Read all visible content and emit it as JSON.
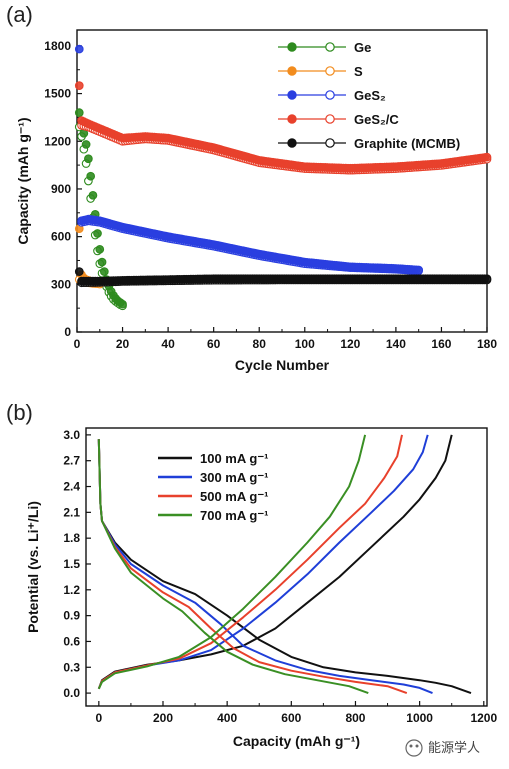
{
  "panel_a_label": "(a)",
  "panel_b_label": "(b)",
  "watermark": "能源学人",
  "chart_data": [
    {
      "type": "scatter",
      "xlabel": "Cycle Number",
      "ylabel": "Capacity (mAh g⁻¹)",
      "xlim": [
        0,
        180
      ],
      "ylim": [
        0,
        1900
      ],
      "xticks": [
        0,
        20,
        40,
        60,
        80,
        100,
        120,
        140,
        160,
        180
      ],
      "yticks": [
        0,
        300,
        600,
        900,
        1200,
        1500,
        1800
      ],
      "legend_position": "top-right",
      "series": [
        {
          "name": "Ge",
          "color": "#2e8b1e",
          "discharge": [
            [
              1,
              1380
            ],
            [
              2,
              1310
            ],
            [
              3,
              1250
            ],
            [
              4,
              1180
            ],
            [
              5,
              1090
            ],
            [
              6,
              980
            ],
            [
              7,
              860
            ],
            [
              8,
              740
            ],
            [
              9,
              620
            ],
            [
              10,
              520
            ],
            [
              11,
              440
            ],
            [
              12,
              380
            ],
            [
              13,
              330
            ],
            [
              14,
              290
            ],
            [
              15,
              255
            ],
            [
              16,
              230
            ],
            [
              17,
              210
            ],
            [
              18,
              195
            ],
            [
              19,
              185
            ],
            [
              20,
              175
            ]
          ],
          "charge": [
            [
              1,
              1290
            ],
            [
              2,
              1230
            ],
            [
              3,
              1150
            ],
            [
              4,
              1060
            ],
            [
              5,
              950
            ],
            [
              6,
              840
            ],
            [
              7,
              720
            ],
            [
              8,
              610
            ],
            [
              9,
              510
            ],
            [
              10,
              430
            ],
            [
              11,
              370
            ],
            [
              12,
              320
            ],
            [
              13,
              285
            ],
            [
              14,
              250
            ],
            [
              15,
              225
            ],
            [
              16,
              205
            ],
            [
              17,
              192
            ],
            [
              18,
              182
            ],
            [
              19,
              172
            ],
            [
              20,
              165
            ]
          ]
        },
        {
          "name": "S",
          "color": "#f28c1e",
          "discharge": [
            [
              1,
              650
            ],
            [
              2,
              360
            ],
            [
              3,
              340
            ],
            [
              4,
              330
            ],
            [
              5,
              325
            ],
            [
              6,
              320
            ],
            [
              7,
              318
            ],
            [
              8,
              315
            ],
            [
              9,
              312
            ],
            [
              10,
              310
            ]
          ],
          "charge": [
            [
              1,
              330
            ],
            [
              2,
              320
            ],
            [
              3,
              315
            ],
            [
              4,
              312
            ],
            [
              5,
              310
            ],
            [
              6,
              308
            ],
            [
              7,
              306
            ],
            [
              8,
              305
            ],
            [
              9,
              304
            ],
            [
              10,
              302
            ]
          ]
        },
        {
          "name": "GeS₂",
          "color": "#2a3fe0",
          "discharge_first": [
            1,
            1780
          ],
          "trend": [
            [
              2,
              700
            ],
            [
              5,
              710
            ],
            [
              10,
              700
            ],
            [
              20,
              660
            ],
            [
              40,
              600
            ],
            [
              60,
              550
            ],
            [
              80,
              490
            ],
            [
              100,
              440
            ],
            [
              120,
              410
            ],
            [
              140,
              400
            ],
            [
              150,
              390
            ]
          ],
          "charge_trend": [
            [
              2,
              690
            ],
            [
              5,
              700
            ],
            [
              10,
              690
            ],
            [
              20,
              650
            ],
            [
              40,
              590
            ],
            [
              60,
              540
            ],
            [
              80,
              480
            ],
            [
              100,
              430
            ],
            [
              120,
              405
            ],
            [
              140,
              395
            ],
            [
              150,
              385
            ]
          ]
        },
        {
          "name": "GeS₂/C",
          "color": "#e8412c",
          "discharge_first": [
            1,
            1550
          ],
          "trend": [
            [
              2,
              1330
            ],
            [
              5,
              1310
            ],
            [
              10,
              1280
            ],
            [
              20,
              1220
            ],
            [
              30,
              1230
            ],
            [
              40,
              1220
            ],
            [
              60,
              1160
            ],
            [
              80,
              1080
            ],
            [
              100,
              1040
            ],
            [
              120,
              1030
            ],
            [
              140,
              1040
            ],
            [
              160,
              1060
            ],
            [
              180,
              1100
            ]
          ],
          "charge_trend": [
            [
              2,
              1300
            ],
            [
              5,
              1290
            ],
            [
              10,
              1260
            ],
            [
              20,
              1200
            ],
            [
              30,
              1215
            ],
            [
              40,
              1205
            ],
            [
              60,
              1145
            ],
            [
              80,
              1065
            ],
            [
              100,
              1028
            ],
            [
              120,
              1018
            ],
            [
              140,
              1028
            ],
            [
              160,
              1048
            ],
            [
              180,
              1088
            ]
          ]
        },
        {
          "name": "Graphite (MCMB)",
          "color": "#111111",
          "discharge_first": [
            1,
            380
          ],
          "trend": [
            [
              2,
              320
            ],
            [
              10,
              320
            ],
            [
              20,
              325
            ],
            [
              40,
              330
            ],
            [
              60,
              335
            ],
            [
              100,
              335
            ],
            [
              140,
              335
            ],
            [
              180,
              335
            ]
          ],
          "charge_trend": [
            [
              2,
              310
            ],
            [
              10,
              312
            ],
            [
              20,
              318
            ],
            [
              40,
              322
            ],
            [
              60,
              326
            ],
            [
              100,
              328
            ],
            [
              140,
              328
            ],
            [
              180,
              328
            ]
          ]
        }
      ]
    },
    {
      "type": "line",
      "xlabel": "Capacity (mAh g⁻¹)",
      "ylabel": "Potential (vs. Li⁺/Li)",
      "xlim": [
        -40,
        1210
      ],
      "ylim": [
        -0.15,
        3.08
      ],
      "xticks": [
        0,
        200,
        400,
        600,
        800,
        1000,
        1200
      ],
      "yticks": [
        0.0,
        0.3,
        0.6,
        0.9,
        1.2,
        1.5,
        1.8,
        2.1,
        2.4,
        2.7,
        3.0
      ],
      "legend_position": "top-left",
      "series": [
        {
          "name": "100 mA g⁻¹",
          "color": "#111111",
          "discharge": [
            [
              0,
              2.95
            ],
            [
              5,
              2.2
            ],
            [
              10,
              2.0
            ],
            [
              50,
              1.75
            ],
            [
              100,
              1.55
            ],
            [
              200,
              1.3
            ],
            [
              300,
              1.15
            ],
            [
              400,
              0.9
            ],
            [
              500,
              0.62
            ],
            [
              600,
              0.42
            ],
            [
              700,
              0.3
            ],
            [
              800,
              0.24
            ],
            [
              900,
              0.2
            ],
            [
              1000,
              0.15
            ],
            [
              1050,
              0.12
            ],
            [
              1100,
              0.08
            ],
            [
              1160,
              0.0
            ]
          ],
          "charge": [
            [
              0,
              0.05
            ],
            [
              10,
              0.15
            ],
            [
              50,
              0.25
            ],
            [
              150,
              0.33
            ],
            [
              250,
              0.38
            ],
            [
              350,
              0.45
            ],
            [
              450,
              0.55
            ],
            [
              550,
              0.75
            ],
            [
              650,
              1.05
            ],
            [
              750,
              1.35
            ],
            [
              850,
              1.7
            ],
            [
              950,
              2.05
            ],
            [
              1000,
              2.25
            ],
            [
              1050,
              2.5
            ],
            [
              1080,
              2.7
            ],
            [
              1100,
              3.0
            ]
          ]
        },
        {
          "name": "300 mA g⁻¹",
          "color": "#1f3fd8",
          "discharge": [
            [
              0,
              2.95
            ],
            [
              5,
              2.2
            ],
            [
              10,
              2.0
            ],
            [
              50,
              1.73
            ],
            [
              100,
              1.5
            ],
            [
              200,
              1.25
            ],
            [
              300,
              1.05
            ],
            [
              380,
              0.8
            ],
            [
              450,
              0.55
            ],
            [
              550,
              0.38
            ],
            [
              650,
              0.27
            ],
            [
              750,
              0.2
            ],
            [
              850,
              0.15
            ],
            [
              950,
              0.1
            ],
            [
              1000,
              0.06
            ],
            [
              1040,
              0.0
            ]
          ],
          "charge": [
            [
              0,
              0.05
            ],
            [
              10,
              0.14
            ],
            [
              50,
              0.24
            ],
            [
              150,
              0.32
            ],
            [
              250,
              0.38
            ],
            [
              350,
              0.5
            ],
            [
              450,
              0.75
            ],
            [
              550,
              1.05
            ],
            [
              650,
              1.38
            ],
            [
              750,
              1.75
            ],
            [
              850,
              2.1
            ],
            [
              920,
              2.35
            ],
            [
              980,
              2.6
            ],
            [
              1010,
              2.8
            ],
            [
              1025,
              3.0
            ]
          ]
        },
        {
          "name": "500 mA g⁻¹",
          "color": "#e8412c",
          "discharge": [
            [
              0,
              2.95
            ],
            [
              5,
              2.2
            ],
            [
              10,
              2.0
            ],
            [
              50,
              1.7
            ],
            [
              100,
              1.45
            ],
            [
              200,
              1.17
            ],
            [
              280,
              1.0
            ],
            [
              350,
              0.75
            ],
            [
              420,
              0.52
            ],
            [
              500,
              0.36
            ],
            [
              600,
              0.26
            ],
            [
              700,
              0.19
            ],
            [
              800,
              0.13
            ],
            [
              900,
              0.08
            ],
            [
              960,
              0.0
            ]
          ],
          "charge": [
            [
              0,
              0.05
            ],
            [
              10,
              0.14
            ],
            [
              50,
              0.24
            ],
            [
              150,
              0.32
            ],
            [
              250,
              0.4
            ],
            [
              350,
              0.58
            ],
            [
              450,
              0.88
            ],
            [
              550,
              1.2
            ],
            [
              650,
              1.55
            ],
            [
              750,
              1.92
            ],
            [
              830,
              2.2
            ],
            [
              890,
              2.5
            ],
            [
              930,
              2.75
            ],
            [
              945,
              3.0
            ]
          ]
        },
        {
          "name": "700 mA g⁻¹",
          "color": "#3a8f24",
          "discharge": [
            [
              0,
              2.95
            ],
            [
              5,
              2.2
            ],
            [
              10,
              2.0
            ],
            [
              50,
              1.68
            ],
            [
              100,
              1.4
            ],
            [
              200,
              1.1
            ],
            [
              260,
              0.95
            ],
            [
              330,
              0.7
            ],
            [
              400,
              0.48
            ],
            [
              480,
              0.33
            ],
            [
              580,
              0.22
            ],
            [
              680,
              0.15
            ],
            [
              780,
              0.08
            ],
            [
              840,
              0.0
            ]
          ],
          "charge": [
            [
              0,
              0.05
            ],
            [
              10,
              0.13
            ],
            [
              50,
              0.23
            ],
            [
              150,
              0.31
            ],
            [
              250,
              0.42
            ],
            [
              350,
              0.65
            ],
            [
              450,
              0.98
            ],
            [
              550,
              1.35
            ],
            [
              650,
              1.75
            ],
            [
              720,
              2.05
            ],
            [
              780,
              2.4
            ],
            [
              810,
              2.7
            ],
            [
              830,
              3.0
            ]
          ]
        }
      ]
    }
  ]
}
